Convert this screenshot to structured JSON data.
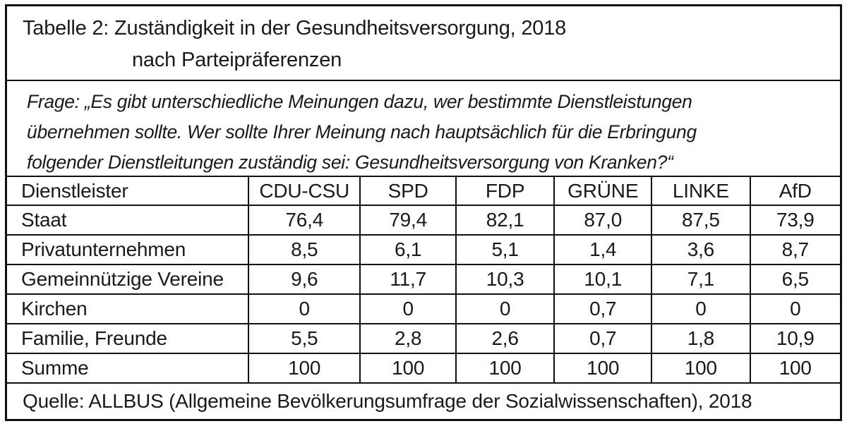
{
  "title": {
    "line1": "Tabelle 2: Zuständigkeit in der Gesundheitsversorgung, 2018",
    "line2": "nach Parteipräferenzen"
  },
  "question": {
    "line1": "Frage: „Es gibt unterschiedliche Meinungen dazu, wer bestimmte Dienstleistungen",
    "line2": "übernehmen sollte. Wer sollte Ihrer Meinung nach hauptsächlich für die Erbringung",
    "line3": "folgender Dienstleitungen zuständig sei: Gesundheitsversorgung von Kranken?“"
  },
  "table": {
    "header": [
      "Dienstleister",
      "CDU-CSU",
      "SPD",
      "FDP",
      "GRÜNE",
      "LINKE",
      "AfD"
    ],
    "rows": [
      [
        "Staat",
        "76,4",
        "79,4",
        "82,1",
        "87,0",
        "87,5",
        "73,9"
      ],
      [
        "Privatunternehmen",
        "8,5",
        "6,1",
        "5,1",
        "1,4",
        "3,6",
        "8,7"
      ],
      [
        "Gemeinnützige Vereine",
        "9,6",
        "11,7",
        "10,3",
        "10,1",
        "7,1",
        "6,5"
      ],
      [
        "Kirchen",
        "0",
        "0",
        "0",
        "0,7",
        "0",
        "0"
      ],
      [
        "Familie, Freunde",
        "5,5",
        "2,8",
        "2,6",
        "0,7",
        "1,8",
        "10,9"
      ],
      [
        "Summe",
        "100",
        "100",
        "100",
        "100",
        "100",
        "100"
      ]
    ]
  },
  "source": "Quelle: ALLBUS (Allgemeine Bevölkerungsumfrage der Sozialwissenschaften), 2018"
}
